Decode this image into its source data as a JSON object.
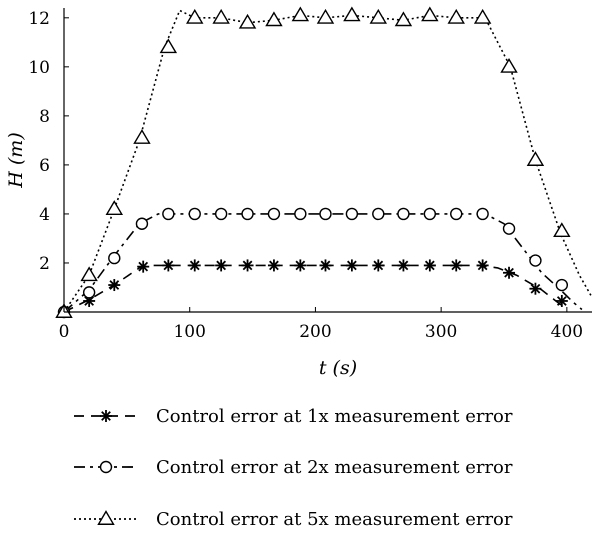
{
  "chart_data": {
    "type": "line",
    "title": "",
    "xlabel": "t (s)",
    "ylabel": "H (m)",
    "xlim": [
      0,
      420
    ],
    "ylim": [
      0,
      12.4
    ],
    "xticks": [
      0,
      100,
      200,
      300,
      400
    ],
    "yticks": [
      2,
      4,
      6,
      8,
      10,
      12
    ],
    "grid": false,
    "legend_position": "bottom",
    "series": [
      {
        "name": "Control error at 1x measurement error",
        "line_style": "dash",
        "marker": "asterisk",
        "line": {
          "x": [
            0,
            20,
            40,
            60,
            70,
            330,
            345,
            360,
            370,
            380,
            390,
            395,
            400
          ],
          "y": [
            0,
            0.5,
            1.1,
            1.8,
            1.9,
            1.9,
            1.8,
            1.5,
            1.2,
            0.9,
            0.5,
            0.3,
            0.15
          ]
        },
        "markers": {
          "x": [
            0,
            20,
            40,
            63,
            83,
            104,
            125,
            146,
            167,
            188,
            208,
            229,
            250,
            270,
            291,
            312,
            333,
            354,
            375,
            396
          ],
          "y": [
            0,
            0.45,
            1.1,
            1.85,
            1.9,
            1.9,
            1.9,
            1.9,
            1.9,
            1.9,
            1.9,
            1.9,
            1.9,
            1.9,
            1.9,
            1.9,
            1.9,
            1.6,
            0.95,
            0.45
          ]
        }
      },
      {
        "name": "Control error at 2x measurement error",
        "line_style": "dashdot",
        "marker": "circle",
        "line": {
          "x": [
            0,
            20,
            40,
            60,
            75,
            335,
            350,
            365,
            380,
            395,
            405,
            412
          ],
          "y": [
            0,
            0.9,
            2.3,
            3.6,
            4.0,
            4.0,
            3.6,
            2.6,
            1.6,
            0.9,
            0.4,
            0.1
          ]
        },
        "markers": {
          "x": [
            0,
            20,
            40,
            62,
            83,
            104,
            125,
            146,
            167,
            188,
            208,
            229,
            250,
            270,
            291,
            312,
            333,
            354,
            375,
            396
          ],
          "y": [
            0,
            0.8,
            2.2,
            3.6,
            4.0,
            4.0,
            4.0,
            4.0,
            4.0,
            4.0,
            4.0,
            4.0,
            4.0,
            4.0,
            4.0,
            4.0,
            4.0,
            3.4,
            2.1,
            1.1
          ]
        }
      },
      {
        "name": "Control error at 5x measurement error",
        "line_style": "dotted",
        "marker": "triangle",
        "line": {
          "x": [
            0,
            20,
            40,
            60,
            80,
            92,
            104,
            125,
            146,
            167,
            188,
            208,
            229,
            250,
            270,
            291,
            312,
            335,
            355,
            375,
            395,
            410,
            420
          ],
          "y": [
            0,
            1.5,
            4.2,
            7.0,
            10.8,
            12.3,
            12.0,
            12.0,
            11.8,
            11.9,
            12.1,
            12.0,
            12.1,
            12.0,
            11.9,
            12.1,
            12.0,
            12.0,
            10.0,
            6.2,
            3.2,
            1.5,
            0.6
          ]
        },
        "markers": {
          "x": [
            0,
            20,
            40,
            62,
            83,
            104,
            125,
            146,
            167,
            188,
            208,
            229,
            250,
            270,
            291,
            312,
            333,
            354,
            375,
            396
          ],
          "y": [
            0,
            1.5,
            4.2,
            7.1,
            10.8,
            12.0,
            12.0,
            11.8,
            11.9,
            12.1,
            12.0,
            12.1,
            12.0,
            11.9,
            12.1,
            12.0,
            12.0,
            10.0,
            6.2,
            3.3
          ]
        }
      }
    ]
  }
}
